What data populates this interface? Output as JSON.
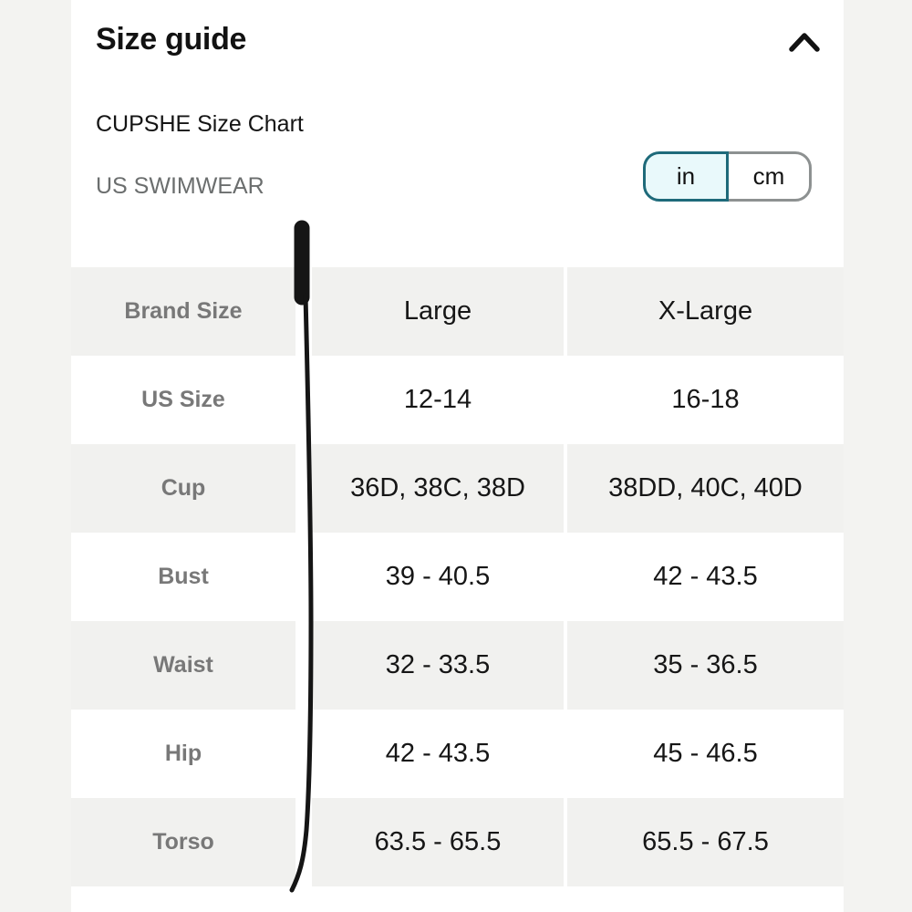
{
  "header": {
    "title": "Size guide",
    "collapse_icon": "chevron-up-icon"
  },
  "size_chart": {
    "brand_title": "CUPSHE Size Chart",
    "category": "US SWIMWEAR"
  },
  "unit_toggle": {
    "options": [
      "in",
      "cm"
    ],
    "selected": "in"
  },
  "table": {
    "header_row": {
      "label": "Brand Size",
      "values": [
        "Large",
        "X-Large"
      ]
    },
    "rows": [
      {
        "label": "US Size",
        "values": [
          "12-14",
          "16-18"
        ]
      },
      {
        "label": "Cup",
        "values": [
          "36D, 38C, 38D",
          "38DD, 40C, 40D"
        ]
      },
      {
        "label": "Bust",
        "values": [
          "39 - 40.5",
          "42 - 43.5"
        ]
      },
      {
        "label": "Waist",
        "values": [
          "32 - 33.5",
          "35 - 36.5"
        ]
      },
      {
        "label": "Hip",
        "values": [
          "42 - 43.5",
          "45 - 46.5"
        ]
      },
      {
        "label": "Torso",
        "values": [
          "63.5 - 65.5",
          "65.5 - 67.5"
        ]
      }
    ]
  },
  "colors": {
    "accent_teal": "#1e6a7a",
    "selected_unit_fill": "#e9f9fb",
    "unselected_border": "#8d9191",
    "row_stripe": "#f1f1ef",
    "label_gray": "#787878",
    "text_black": "#161616",
    "page_bg": "#f3f3f1"
  }
}
